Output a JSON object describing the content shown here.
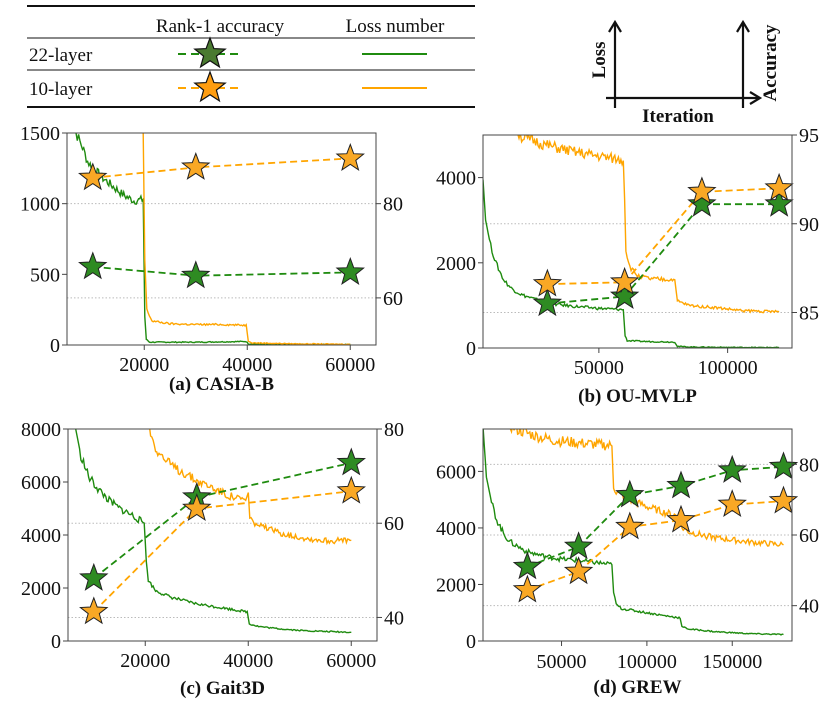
{
  "legend": {
    "headers": {
      "accuracy": "Rank-1 accuracy",
      "loss": "Loss number"
    },
    "rows": [
      {
        "label": "22-layer",
        "color": "#1f8b0f",
        "star_fill": "#4a7a30"
      },
      {
        "label": "10-layer",
        "color": "#ffa500",
        "star_fill": "#ff9d10"
      }
    ]
  },
  "axis_diagram": {
    "left_label": "Loss",
    "bottom_label": "Iteration",
    "right_label": "Accuracy"
  },
  "colors": {
    "green_line": "#1f8b0f",
    "green_star": "#2e8b22",
    "orange_line": "#ffa500",
    "orange_star": "#f9a825",
    "grid": "#bbbbbb"
  },
  "chart_data": [
    {
      "type": "line",
      "title": "(a) CASIA-B",
      "xlim": [
        5000,
        65000
      ],
      "ylim": [
        0,
        1500
      ],
      "y2lim": [
        50,
        95
      ],
      "xticks": [
        "20000",
        "40000",
        "60000"
      ],
      "yticks": [
        "0",
        "500",
        "1000",
        "1500"
      ],
      "y2ticks": [
        "60",
        "80"
      ],
      "grid": "dotted at right-axis ticks",
      "accuracy": {
        "x": [
          10000,
          30000,
          60000
        ],
        "series": [
          {
            "name": "22-layer",
            "values": [
              66.6,
              64.7,
              65.4
            ]
          },
          {
            "name": "10-layer",
            "values": [
              85.5,
              87.7,
              89.6
            ]
          }
        ]
      },
      "loss": [
        {
          "name": "22-layer",
          "points": [
            [
              5500,
              1600
            ],
            [
              7000,
              1480
            ],
            [
              8000,
              1400
            ],
            [
              9000,
              1300
            ],
            [
              10000,
              1250
            ],
            [
              12000,
              1180
            ],
            [
              14000,
              1120
            ],
            [
              16000,
              1060
            ],
            [
              18000,
              1020
            ],
            [
              19800,
              1030
            ],
            [
              20100,
              200
            ],
            [
              20400,
              40
            ],
            [
              21000,
              20
            ],
            [
              30000,
              20
            ],
            [
              39800,
              25
            ],
            [
              40200,
              8
            ],
            [
              45000,
              5
            ],
            [
              60000,
              3
            ]
          ]
        },
        {
          "name": "10-layer",
          "points": [
            [
              18500,
              1600
            ],
            [
              19800,
              1500
            ],
            [
              20100,
              600
            ],
            [
              20500,
              250
            ],
            [
              21500,
              170
            ],
            [
              25000,
              150
            ],
            [
              30000,
              145
            ],
            [
              35000,
              145
            ],
            [
              39800,
              140
            ],
            [
              40200,
              30
            ],
            [
              41000,
              15
            ],
            [
              50000,
              8
            ],
            [
              60000,
              5
            ]
          ]
        }
      ]
    },
    {
      "type": "line",
      "title": "(b) OU-MVLP",
      "xlim": [
        5000,
        125000
      ],
      "ylim": [
        0,
        5000
      ],
      "y2lim": [
        83,
        95
      ],
      "xticks": [
        "50000",
        "100000"
      ],
      "yticks": [
        "0",
        "2000",
        "4000"
      ],
      "y2ticks": [
        "85",
        "90",
        "95"
      ],
      "grid": "dotted at right-axis ticks",
      "accuracy": {
        "x": [
          30000,
          60000,
          90000,
          120000
        ],
        "series": [
          {
            "name": "22-layer",
            "values": [
              85.5,
              85.9,
              91.1,
              91.1
            ]
          },
          {
            "name": "10-layer",
            "values": [
              86.6,
              86.7,
              91.8,
              92.0
            ]
          }
        ]
      },
      "loss": [
        {
          "name": "22-layer",
          "points": [
            [
              5000,
              3950
            ],
            [
              6000,
              3000
            ],
            [
              8000,
              2400
            ],
            [
              10000,
              2000
            ],
            [
              13000,
              1600
            ],
            [
              16000,
              1400
            ],
            [
              20000,
              1250
            ],
            [
              25000,
              1150
            ],
            [
              30000,
              1050
            ],
            [
              40000,
              980
            ],
            [
              50000,
              930
            ],
            [
              59500,
              900
            ],
            [
              60200,
              300
            ],
            [
              61000,
              170
            ],
            [
              70000,
              150
            ],
            [
              79500,
              140
            ],
            [
              80500,
              40
            ],
            [
              85000,
              25
            ],
            [
              100000,
              15
            ],
            [
              120000,
              10
            ]
          ]
        },
        {
          "name": "10-layer",
          "points": [
            [
              18000,
              5100
            ],
            [
              20000,
              4950
            ],
            [
              25000,
              4850
            ],
            [
              30000,
              4750
            ],
            [
              40000,
              4600
            ],
            [
              50000,
              4500
            ],
            [
              59500,
              4400
            ],
            [
              60000,
              3500
            ],
            [
              60500,
              2300
            ],
            [
              62000,
              1900
            ],
            [
              65000,
              1700
            ],
            [
              70000,
              1620
            ],
            [
              79500,
              1600
            ],
            [
              80500,
              1100
            ],
            [
              85000,
              1000
            ],
            [
              95000,
              950
            ],
            [
              105000,
              880
            ],
            [
              120000,
              850
            ]
          ]
        }
      ]
    },
    {
      "type": "line",
      "title": "(c) Gait3D",
      "xlim": [
        5000,
        65000
      ],
      "ylim": [
        0,
        8000
      ],
      "y2lim": [
        35,
        80
      ],
      "xticks": [
        "20000",
        "40000",
        "60000"
      ],
      "yticks": [
        "0",
        "2000",
        "4000",
        "6000",
        "8000"
      ],
      "y2ticks": [
        "40",
        "60",
        "80"
      ],
      "grid": "dotted at right-axis ticks",
      "accuracy": {
        "x": [
          10000,
          30000,
          60000
        ],
        "series": [
          {
            "name": "22-layer",
            "values": [
              48.3,
              65.5,
              72.8
            ]
          },
          {
            "name": "10-layer",
            "values": [
              41.2,
              63.1,
              66.8
            ]
          }
        ]
      },
      "loss": [
        {
          "name": "22-layer",
          "points": [
            [
              6500,
              8000
            ],
            [
              7500,
              7000
            ],
            [
              9000,
              6200
            ],
            [
              11000,
              5700
            ],
            [
              13000,
              5300
            ],
            [
              15000,
              5000
            ],
            [
              17000,
              4800
            ],
            [
              19800,
              4450
            ],
            [
              20200,
              3000
            ],
            [
              20600,
              2300
            ],
            [
              22000,
              1900
            ],
            [
              25000,
              1650
            ],
            [
              30000,
              1400
            ],
            [
              35000,
              1250
            ],
            [
              39800,
              1100
            ],
            [
              40200,
              650
            ],
            [
              42000,
              550
            ],
            [
              45000,
              480
            ],
            [
              50000,
              400
            ],
            [
              55000,
              360
            ],
            [
              60000,
              330
            ]
          ]
        },
        {
          "name": "10-layer",
          "points": [
            [
              20800,
              8000
            ],
            [
              22000,
              7300
            ],
            [
              24000,
              6800
            ],
            [
              26000,
              6500
            ],
            [
              28000,
              6300
            ],
            [
              30000,
              6050
            ],
            [
              33000,
              5800
            ],
            [
              36000,
              5500
            ],
            [
              39500,
              5300
            ],
            [
              40000,
              5600
            ],
            [
              40300,
              4600
            ],
            [
              42000,
              4350
            ],
            [
              45000,
              4150
            ],
            [
              48000,
              4000
            ],
            [
              52000,
              3850
            ],
            [
              56000,
              3780
            ],
            [
              60000,
              3800
            ]
          ]
        }
      ]
    },
    {
      "type": "line",
      "title": "(d) GREW",
      "xlim": [
        4000,
        185000
      ],
      "ylim": [
        0,
        7500
      ],
      "y2lim": [
        30,
        90
      ],
      "xticks": [
        "50000",
        "100000",
        "150000"
      ],
      "yticks": [
        "0",
        "2000",
        "4000",
        "6000"
      ],
      "y2ticks": [
        "40",
        "60",
        "80"
      ],
      "grid": "dotted at right-axis ticks",
      "accuracy": {
        "x": [
          30000,
          60000,
          90000,
          120000,
          150000,
          180000
        ],
        "series": [
          {
            "name": "22-layer",
            "values": [
              51.0,
              56.7,
              71.3,
              73.9,
              78.3,
              79.3
            ]
          },
          {
            "name": "10-layer",
            "values": [
              44.4,
              49.6,
              62.3,
              64.2,
              68.6,
              69.6
            ]
          }
        ]
      },
      "loss": [
        {
          "name": "22-layer",
          "points": [
            [
              4000,
              7600
            ],
            [
              6000,
              5800
            ],
            [
              9000,
              4900
            ],
            [
              12000,
              4300
            ],
            [
              16000,
              3800
            ],
            [
              20000,
              3500
            ],
            [
              30000,
              3150
            ],
            [
              40000,
              3000
            ],
            [
              50000,
              2900
            ],
            [
              60000,
              2850
            ],
            [
              70000,
              2780
            ],
            [
              79500,
              2700
            ],
            [
              80500,
              1700
            ],
            [
              82000,
              1300
            ],
            [
              85000,
              1150
            ],
            [
              95000,
              1050
            ],
            [
              110000,
              900
            ],
            [
              119500,
              820
            ],
            [
              120500,
              500
            ],
            [
              125000,
              420
            ],
            [
              140000,
              330
            ],
            [
              160000,
              260
            ],
            [
              180000,
              230
            ]
          ]
        },
        {
          "name": "10-layer",
          "points": [
            [
              20000,
              7600
            ],
            [
              25000,
              7450
            ],
            [
              35000,
              7250
            ],
            [
              45000,
              7100
            ],
            [
              60000,
              7000
            ],
            [
              70000,
              6950
            ],
            [
              79500,
              6900
            ],
            [
              80500,
              5500
            ],
            [
              82000,
              5250
            ],
            [
              90000,
              5000
            ],
            [
              100000,
              4750
            ],
            [
              110000,
              4550
            ],
            [
              119500,
              4400
            ],
            [
              120500,
              4000
            ],
            [
              125000,
              3850
            ],
            [
              140000,
              3650
            ],
            [
              160000,
              3500
            ],
            [
              180000,
              3400
            ]
          ]
        }
      ]
    }
  ]
}
